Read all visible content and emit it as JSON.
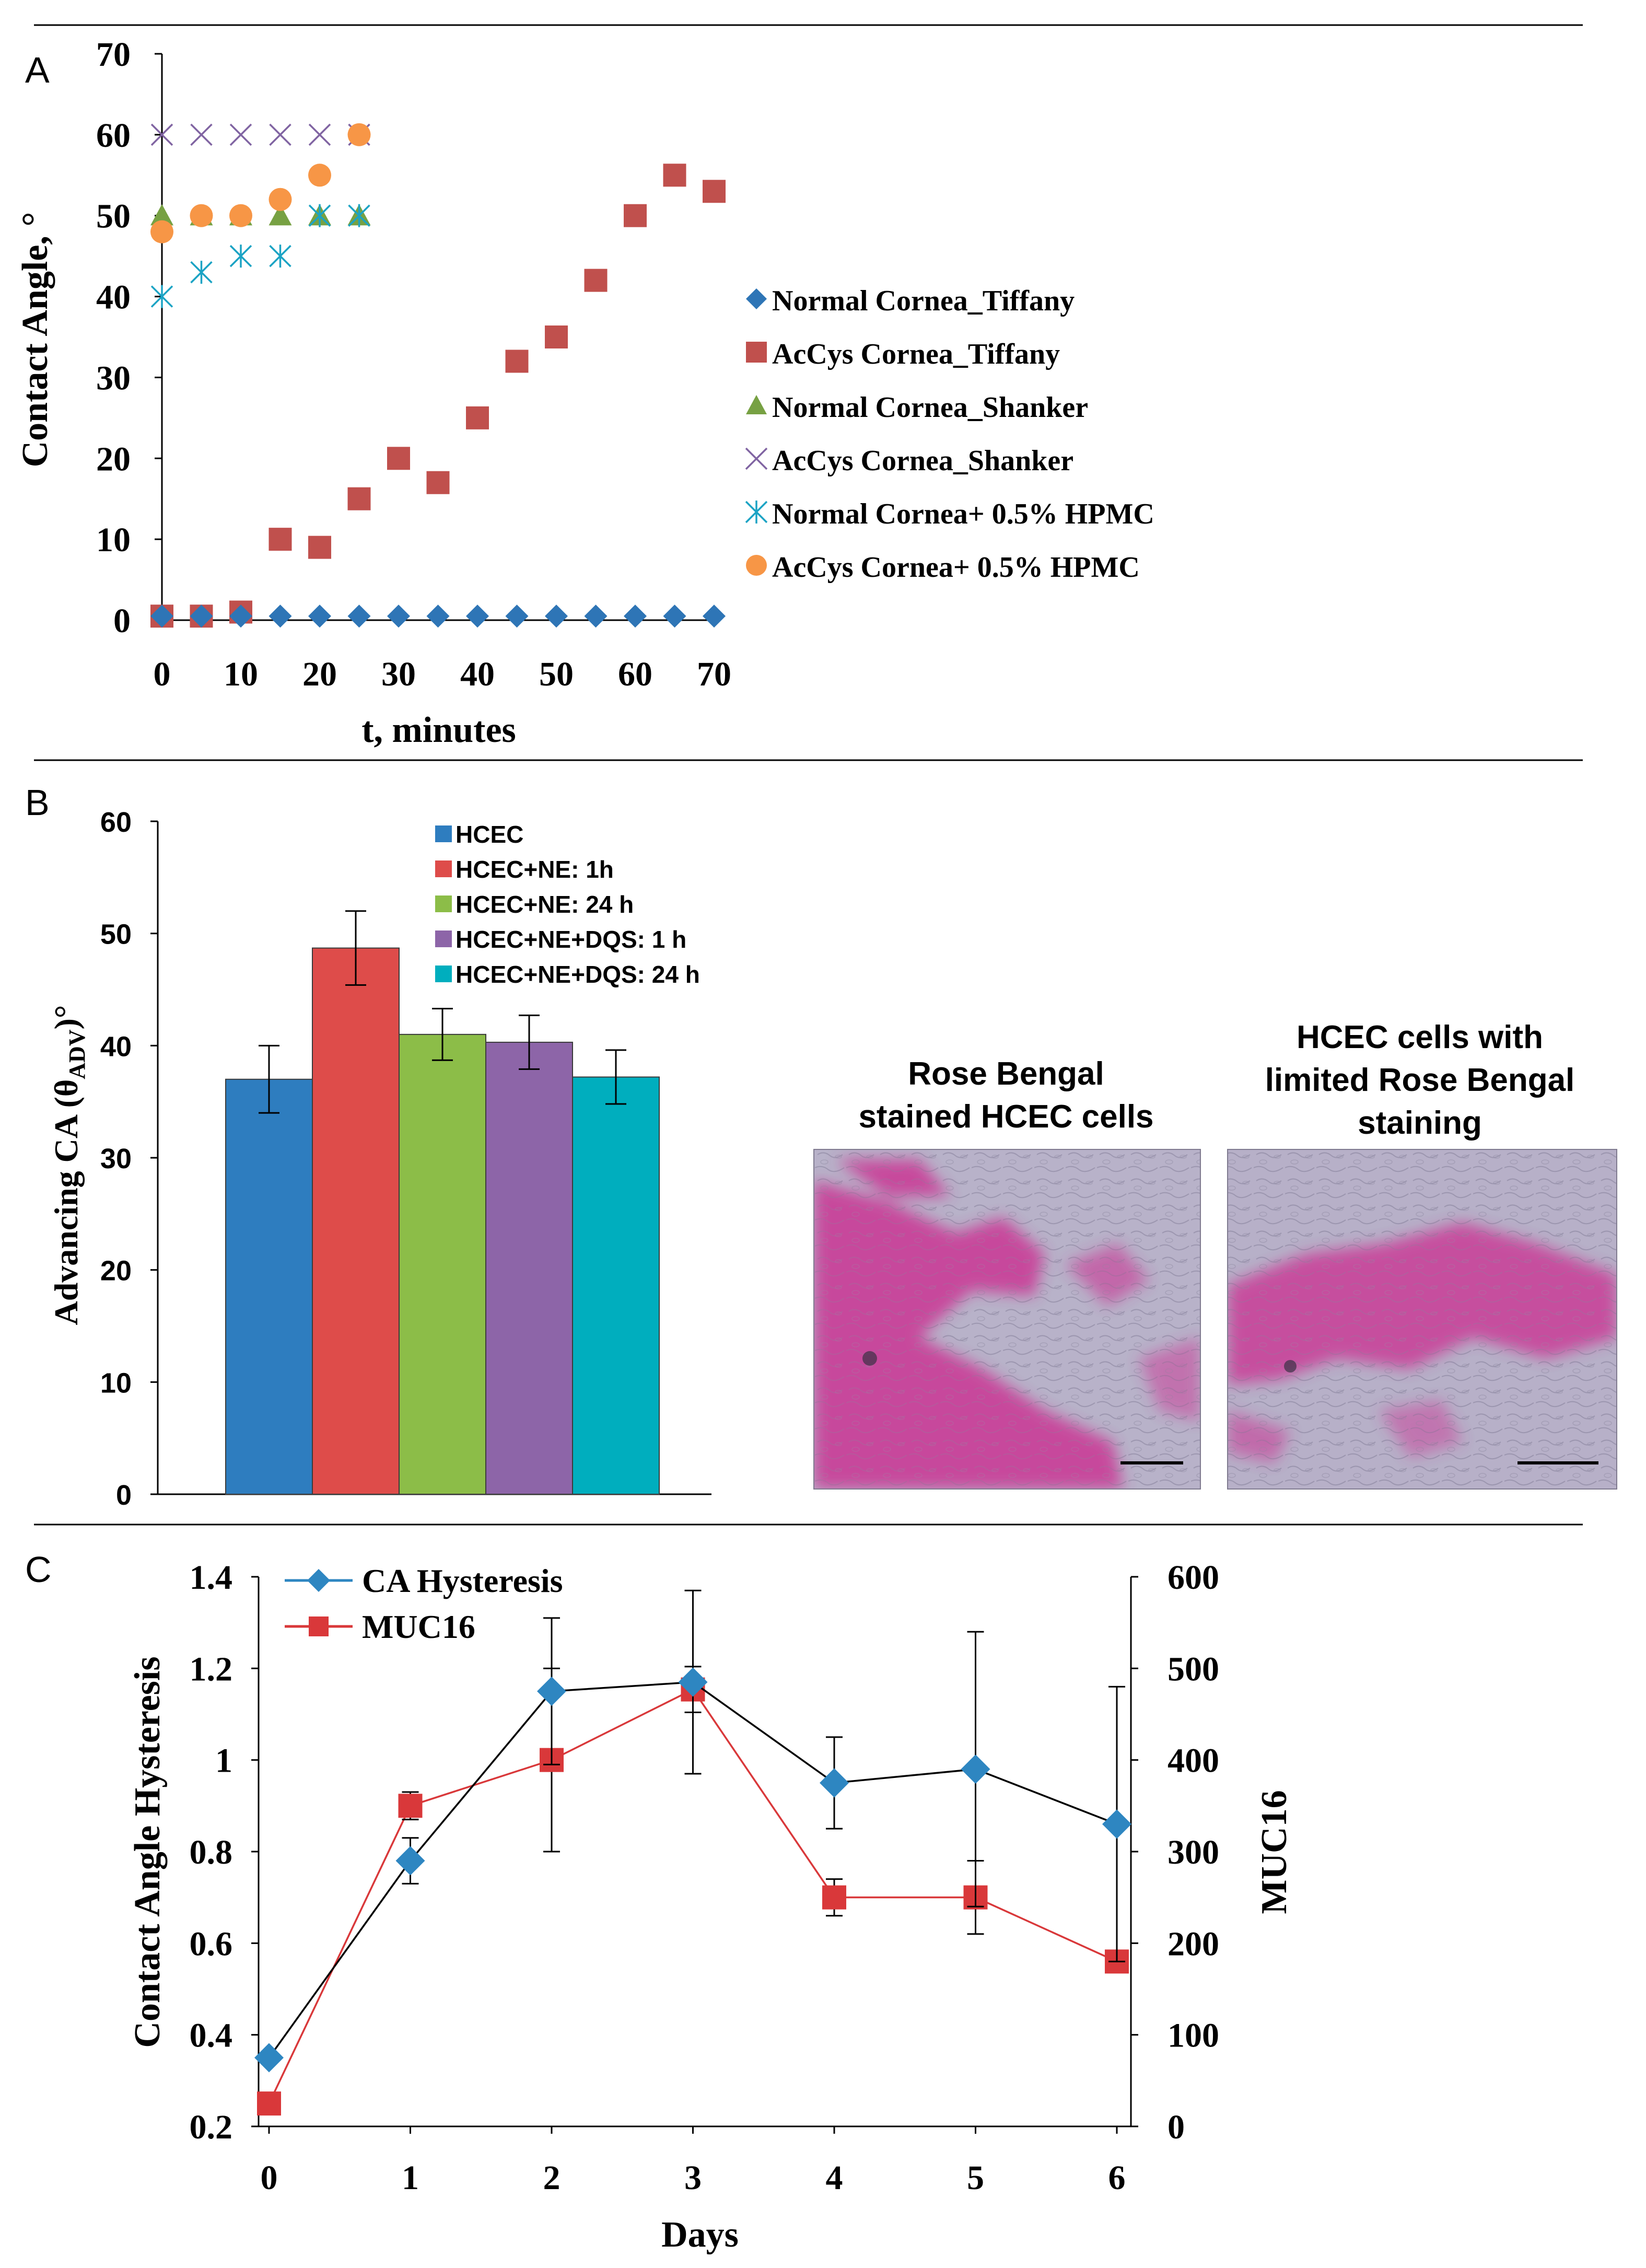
{
  "figure": {
    "panels": [
      "A",
      "B",
      "C"
    ],
    "colors": {
      "blue": "#2e75b6",
      "red": "#c0504d",
      "green": "#77a143",
      "purple": "#8064a2",
      "teal": "#1ba3c4",
      "orange": "#f79646",
      "diamond_blue": "#2e86c1",
      "muc_red": "#d9383a",
      "bar_blue": "#2e7dbf",
      "bar_red": "#de4c4a",
      "bar_green": "#8cbd48",
      "bar_purple": "#8d65a8",
      "bar_teal": "#00aebe",
      "stain_magenta": "#c93d97",
      "stain_bg": "#b7b0c8"
    }
  },
  "chart_data": [
    {
      "panel": "A",
      "type": "scatter",
      "title": "",
      "xlabel": "t, minutes",
      "ylabel": "Contact Angle, °",
      "xlim": [
        0,
        70
      ],
      "ylim": [
        0,
        70
      ],
      "xticks": [
        "0",
        "10",
        "20",
        "30",
        "40",
        "50",
        "60",
        "70"
      ],
      "yticks": [
        "0",
        "10",
        "20",
        "30",
        "40",
        "50",
        "60",
        "70"
      ],
      "legend_position": "right",
      "series": [
        {
          "name": "Normal Cornea_Tiffany",
          "marker": "diamond",
          "color": "#2e75b6",
          "x": [
            0,
            5,
            10,
            15,
            20,
            25,
            30,
            35,
            40,
            45,
            50,
            55,
            60,
            65,
            70
          ],
          "y": [
            0.5,
            0.5,
            0.5,
            0.5,
            0.5,
            0.5,
            0.5,
            0.5,
            0.5,
            0.5,
            0.5,
            0.5,
            0.5,
            0.5,
            0.5
          ]
        },
        {
          "name": "AcCys Cornea_Tiffany",
          "marker": "square",
          "color": "#c0504d",
          "x": [
            0,
            5,
            10,
            15,
            20,
            25,
            30,
            35,
            40,
            45,
            50,
            55,
            60,
            65,
            70
          ],
          "y": [
            0.5,
            0.5,
            1,
            10,
            9,
            15,
            20,
            17,
            25,
            32,
            35,
            42,
            50,
            55,
            53
          ]
        },
        {
          "name": "Normal Cornea_Shanker",
          "marker": "triangle",
          "color": "#77a143",
          "x": [
            0,
            5,
            10,
            15,
            20,
            25
          ],
          "y": [
            50,
            50,
            50,
            50,
            50,
            50
          ]
        },
        {
          "name": "AcCys Cornea_Shanker",
          "marker": "x",
          "color": "#8064a2",
          "x": [
            0,
            5,
            10,
            15,
            20,
            25
          ],
          "y": [
            60,
            60,
            60,
            60,
            60,
            60
          ]
        },
        {
          "name": "Normal Cornea+ 0.5% HPMC",
          "marker": "star",
          "color": "#1ba3c4",
          "x": [
            0,
            5,
            10,
            15,
            20,
            25
          ],
          "y": [
            40,
            43,
            45,
            45,
            50,
            50
          ]
        },
        {
          "name": "AcCys Cornea+ 0.5% HPMC",
          "marker": "circle",
          "color": "#f79646",
          "x": [
            0,
            5,
            10,
            15,
            20,
            25
          ],
          "y": [
            48,
            50,
            50,
            52,
            55,
            60
          ]
        }
      ]
    },
    {
      "panel": "B",
      "type": "bar",
      "title": "",
      "xlabel": "",
      "ylabel": "Advancing CA (θADV)°",
      "ylabel_parts": {
        "pre": "Advancing CA (θ",
        "sub": "ADV",
        "post": ")°"
      },
      "ylim": [
        0,
        60
      ],
      "yticks": [
        "0",
        "10",
        "20",
        "30",
        "40",
        "50",
        "60"
      ],
      "legend_position": "top-center",
      "categories": [
        "HCEC",
        "HCEC+NE: 1h",
        "HCEC+NE: 24 h",
        "HCEC+NE+DQS: 1 h",
        "HCEC+NE+DQS: 24 h"
      ],
      "values": [
        37,
        48.7,
        41,
        40.3,
        37.2
      ],
      "errors": [
        3,
        3.3,
        2.3,
        2.4,
        2.4
      ],
      "colors": [
        "#2e7dbf",
        "#de4c4a",
        "#8cbd48",
        "#8d65a8",
        "#00aebe"
      ]
    },
    {
      "panel": "C",
      "type": "line",
      "title": "",
      "xlabel": "Days",
      "ylabel": "Contact Angle  Hysteresis",
      "y2label": "MUC16",
      "x": [
        0,
        1,
        2,
        3,
        4,
        5,
        6
      ],
      "xticks": [
        "0",
        "1",
        "2",
        "3",
        "4",
        "5",
        "6"
      ],
      "ylim": [
        0.2,
        1.4
      ],
      "yticks": [
        "0.2",
        "0.4",
        "0.6",
        "0.8",
        "1",
        "1.2",
        "1.4"
      ],
      "y2lim": [
        0,
        600
      ],
      "y2ticks": [
        "0",
        "100",
        "200",
        "300",
        "400",
        "500",
        "600"
      ],
      "legend_position": "top-left",
      "series": [
        {
          "name": "CA Hysteresis",
          "axis": "left",
          "marker": "diamond",
          "color": "#2e86c1",
          "values": [
            0.35,
            0.78,
            1.15,
            1.17,
            0.95,
            0.98,
            0.86
          ],
          "errors": [
            0,
            0.05,
            0.16,
            0.2,
            0.1,
            0.3,
            0.3
          ]
        },
        {
          "name": "MUC16",
          "axis": "right",
          "marker": "square",
          "color": "#d9383a",
          "values": [
            25,
            350,
            400,
            477,
            250,
            250,
            180
          ],
          "errors": [
            0,
            15,
            100,
            25,
            20,
            40,
            0
          ]
        }
      ]
    }
  ],
  "micrographs": [
    {
      "title_line1": "Rose Bengal",
      "title_line2": "stained HCEC cells"
    },
    {
      "title_line1": "HCEC cells with",
      "title_line2": "limited Rose Bengal",
      "title_line3": "staining"
    }
  ]
}
